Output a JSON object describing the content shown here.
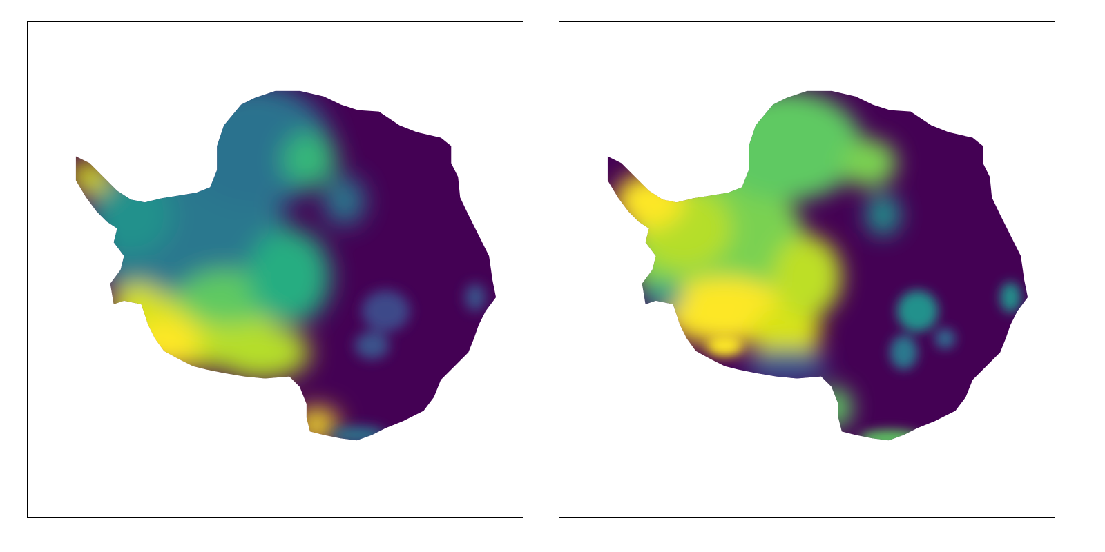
{
  "figure": {
    "description_free": true,
    "colormap": "viridis",
    "colors": {
      "frame": "#000000",
      "background": "#ffffff",
      "viridis_low": "#440154",
      "viridis_mid_low": "#3b528b",
      "viridis_mid": "#21918c",
      "viridis_mid_high": "#5ec962",
      "viridis_high": "#fde725"
    }
  },
  "panels": [
    {
      "id": "left",
      "shows_ticks": false,
      "shows_labels": false
    },
    {
      "id": "right",
      "shows_ticks": false,
      "shows_labels": false
    }
  ]
}
